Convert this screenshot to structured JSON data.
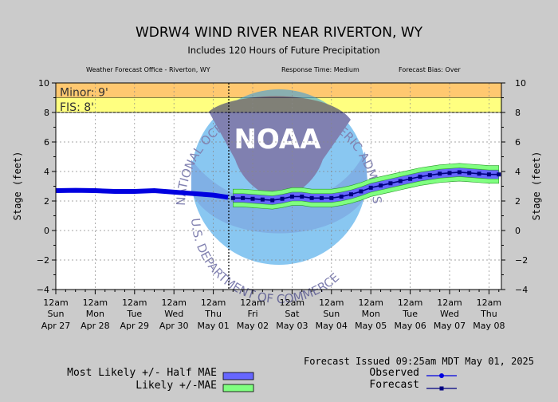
{
  "chart_data": {
    "type": "line",
    "title": "WDRW4 WIND RIVER NEAR RIVERTON, WY",
    "subtitle": "Includes 120 Hours of Future Precipitation",
    "info": {
      "office": "Weather Forecast Office - Riverton, WY",
      "response": "Response Time: Medium",
      "bias": "Forecast Bias:  Over"
    },
    "ylabel": "Stage (feet)",
    "ylim": [
      -4,
      10
    ],
    "yticks": [
      "−4",
      "−2",
      "0",
      "2",
      "4",
      "6",
      "8",
      "10"
    ],
    "ytick_values": [
      -4,
      -2,
      0,
      2,
      4,
      6,
      8,
      10
    ],
    "xlim": [
      "2025-04-27 00:00",
      "2025-05-08 06:00"
    ],
    "xticks": [
      {
        "time": "12am",
        "day": "Sun",
        "date": "Apr 27"
      },
      {
        "time": "12am",
        "day": "Mon",
        "date": "Apr 28"
      },
      {
        "time": "12am",
        "day": "Tue",
        "date": "Apr 29"
      },
      {
        "time": "12am",
        "day": "Wed",
        "date": "Apr 30"
      },
      {
        "time": "12am",
        "day": "Thu",
        "date": "May 01"
      },
      {
        "time": "12am",
        "day": "Fri",
        "date": "May 02"
      },
      {
        "time": "12am",
        "day": "Sat",
        "date": "May 03"
      },
      {
        "time": "12am",
        "day": "Sun",
        "date": "May 04"
      },
      {
        "time": "12am",
        "day": "Mon",
        "date": "May 05"
      },
      {
        "time": "12am",
        "day": "Tue",
        "date": "May 06"
      },
      {
        "time": "12am",
        "day": "Wed",
        "date": "May 07"
      },
      {
        "time": "12am",
        "day": "Thu",
        "date": "May 08"
      }
    ],
    "thresholds": [
      {
        "name": "Minor",
        "label": "Minor: 9'",
        "value": 9,
        "upper": 10,
        "color": "#ffc870"
      },
      {
        "name": "FIS",
        "label": "FIS: 8'",
        "value": 8,
        "upper": 9,
        "color": "#ffff80"
      }
    ],
    "issue_time": "2025-05-01 09:25",
    "series": [
      {
        "name": "Observed",
        "color": "#0000e0",
        "points": [
          [
            "2025-04-27 00:00",
            2.7
          ],
          [
            "2025-04-27 12:00",
            2.72
          ],
          [
            "2025-04-28 00:00",
            2.7
          ],
          [
            "2025-04-28 12:00",
            2.65
          ],
          [
            "2025-04-29 00:00",
            2.65
          ],
          [
            "2025-04-29 12:00",
            2.7
          ],
          [
            "2025-04-30 00:00",
            2.6
          ],
          [
            "2025-04-30 12:00",
            2.5
          ],
          [
            "2025-05-01 00:00",
            2.4
          ],
          [
            "2025-05-01 06:00",
            2.3
          ],
          [
            "2025-05-01 09:00",
            2.25
          ]
        ]
      },
      {
        "name": "Forecast",
        "color": "#000080",
        "points": [
          [
            "2025-05-01 12:00",
            2.2
          ],
          [
            "2025-05-01 18:00",
            2.2
          ],
          [
            "2025-05-02 00:00",
            2.15
          ],
          [
            "2025-05-02 06:00",
            2.1
          ],
          [
            "2025-05-02 12:00",
            2.05
          ],
          [
            "2025-05-02 18:00",
            2.15
          ],
          [
            "2025-05-03 00:00",
            2.3
          ],
          [
            "2025-05-03 06:00",
            2.3
          ],
          [
            "2025-05-03 12:00",
            2.2
          ],
          [
            "2025-05-03 18:00",
            2.2
          ],
          [
            "2025-05-04 00:00",
            2.2
          ],
          [
            "2025-05-04 06:00",
            2.3
          ],
          [
            "2025-05-04 12:00",
            2.45
          ],
          [
            "2025-05-04 18:00",
            2.65
          ],
          [
            "2025-05-05 00:00",
            2.9
          ],
          [
            "2025-05-05 06:00",
            3.05
          ],
          [
            "2025-05-05 12:00",
            3.2
          ],
          [
            "2025-05-05 18:00",
            3.35
          ],
          [
            "2025-05-06 00:00",
            3.5
          ],
          [
            "2025-05-06 06:00",
            3.65
          ],
          [
            "2025-05-06 12:00",
            3.75
          ],
          [
            "2025-05-06 18:00",
            3.85
          ],
          [
            "2025-05-07 00:00",
            3.9
          ],
          [
            "2025-05-07 06:00",
            3.95
          ],
          [
            "2025-05-07 12:00",
            3.9
          ],
          [
            "2025-05-07 18:00",
            3.85
          ],
          [
            "2025-05-08 00:00",
            3.8
          ],
          [
            "2025-05-08 06:00",
            3.8
          ]
        ]
      }
    ],
    "bands": [
      {
        "name": "Likely +/-MAE",
        "color": "#80ff80",
        "halfwidth": 0.6
      },
      {
        "name": "Most Likely +/- Half MAE",
        "color": "#6666ff",
        "halfwidth": 0.3
      }
    ]
  },
  "footer": {
    "issued": "Forecast Issued 09:25am MDT May 01, 2025",
    "legend_mae_half": "Most Likely +/- Half MAE",
    "legend_mae": "Likely +/-MAE",
    "legend_observed": "Observed",
    "legend_forecast": "Forecast"
  },
  "watermark": {
    "logo_text": "NOAA",
    "ring_text": "NATIONAL OCEANIC AND ATMOSPHERIC ADMINISTRATION",
    "bottom_text": "U.S. DEPARTMENT OF COMMERCE"
  }
}
